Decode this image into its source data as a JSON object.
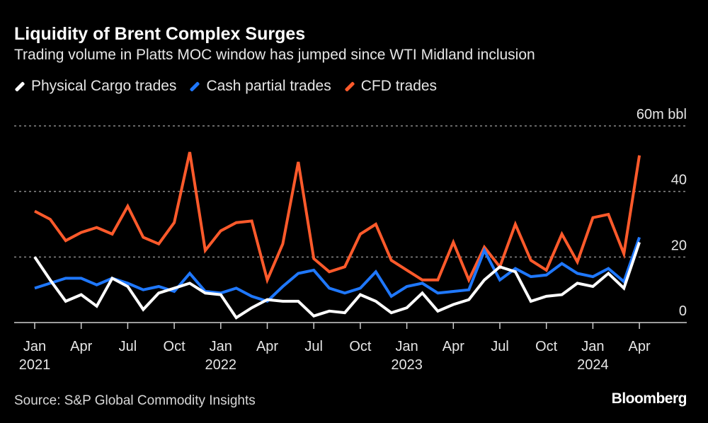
{
  "title": "Liquidity of Brent Complex Surges",
  "subtitle": "Trading volume in Platts MOC window has jumped since WTI Midland inclusion",
  "source": "Source: S&P Global Commodity Insights",
  "brand": "Bloomberg",
  "chart_data": {
    "type": "line",
    "title": "Liquidity of Brent Complex Surges",
    "ylabel": "",
    "yunit_label": "60m bbl",
    "ylim": [
      0,
      60
    ],
    "yticks": [
      {
        "value": 0,
        "label": "0"
      },
      {
        "value": 20,
        "label": "20"
      },
      {
        "value": 40,
        "label": "40"
      },
      {
        "value": 60,
        "label": "60m bbl"
      }
    ],
    "grid": true,
    "legend_placement": "top-left",
    "x": [
      "2021-01",
      "2021-02",
      "2021-03",
      "2021-04",
      "2021-05",
      "2021-06",
      "2021-07",
      "2021-08",
      "2021-09",
      "2021-10",
      "2021-11",
      "2021-12",
      "2022-01",
      "2022-02",
      "2022-03",
      "2022-04",
      "2022-05",
      "2022-06",
      "2022-07",
      "2022-08",
      "2022-09",
      "2022-10",
      "2022-11",
      "2022-12",
      "2023-01",
      "2023-02",
      "2023-03",
      "2023-04",
      "2023-05",
      "2023-06",
      "2023-07",
      "2023-08",
      "2023-09",
      "2023-10",
      "2023-11",
      "2023-12",
      "2024-01",
      "2024-02",
      "2024-03",
      "2024-04"
    ],
    "xticks": [
      {
        "x": "2021-01",
        "label": "Jan",
        "year": "2021"
      },
      {
        "x": "2021-04",
        "label": "Apr"
      },
      {
        "x": "2021-07",
        "label": "Jul"
      },
      {
        "x": "2021-10",
        "label": "Oct"
      },
      {
        "x": "2022-01",
        "label": "Jan",
        "year": "2022"
      },
      {
        "x": "2022-04",
        "label": "Apr"
      },
      {
        "x": "2022-07",
        "label": "Jul"
      },
      {
        "x": "2022-10",
        "label": "Oct"
      },
      {
        "x": "2023-01",
        "label": "Jan",
        "year": "2023"
      },
      {
        "x": "2023-04",
        "label": "Apr"
      },
      {
        "x": "2023-07",
        "label": "Jul"
      },
      {
        "x": "2023-10",
        "label": "Oct"
      },
      {
        "x": "2024-01",
        "label": "Jan",
        "year": "2024"
      },
      {
        "x": "2024-04",
        "label": "Apr"
      }
    ],
    "series": [
      {
        "name": "Physical Cargo trades",
        "color": "#ffffff",
        "values": [
          20,
          13,
          6.5,
          8.5,
          5,
          13.5,
          11,
          4,
          9,
          10.5,
          12,
          9,
          8.5,
          1.5,
          4.5,
          7,
          6.5,
          6.5,
          2,
          3.5,
          3,
          8.5,
          6.5,
          3,
          4.5,
          9,
          3.5,
          5.5,
          7,
          13,
          17,
          15.5,
          6.5,
          8,
          8.5,
          12,
          11,
          15,
          10.5,
          24.5
        ]
      },
      {
        "name": "Cash partial trades",
        "color": "#1f78ff",
        "values": [
          10.5,
          12,
          13.5,
          13.5,
          11.5,
          13.5,
          12,
          10,
          11,
          9.5,
          15,
          9.5,
          9,
          10.5,
          8,
          6.5,
          11,
          15,
          16,
          10.5,
          9,
          10.5,
          15.5,
          8,
          11,
          12,
          9,
          9.5,
          10,
          22,
          13,
          16.5,
          14,
          14.5,
          18,
          15,
          14,
          16.5,
          12.5,
          26
        ]
      },
      {
        "name": "CFD trades",
        "color": "#ff5a2b",
        "values": [
          34,
          31.5,
          25,
          27.5,
          29,
          27,
          35.5,
          26,
          24,
          30.5,
          52,
          22,
          28,
          30.5,
          31,
          13,
          24,
          49,
          19.5,
          15.5,
          17,
          27,
          30,
          19,
          16,
          13,
          13,
          24.5,
          13,
          23,
          17,
          30,
          19,
          16,
          27,
          18.5,
          32,
          33,
          21,
          51
        ]
      }
    ]
  }
}
